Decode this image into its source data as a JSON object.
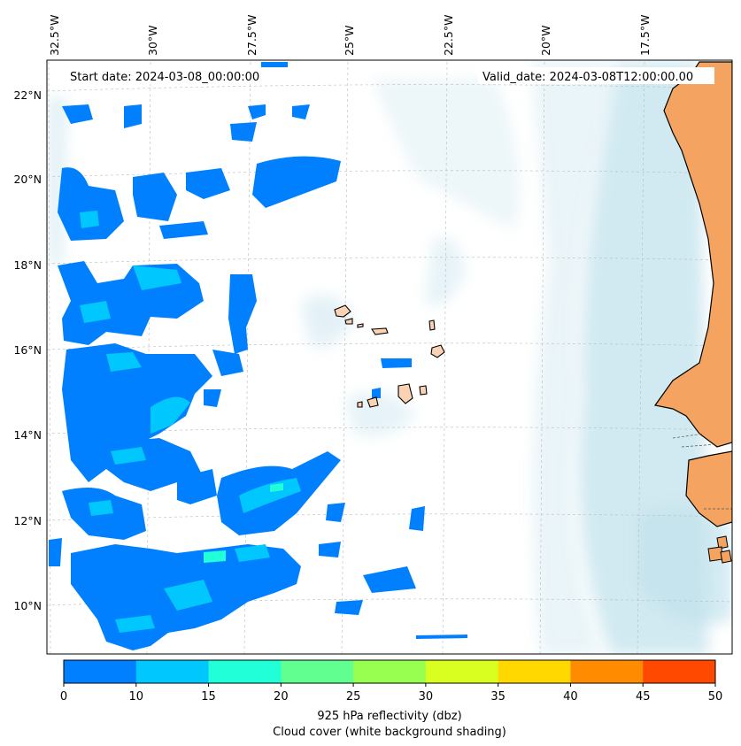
{
  "header": {
    "start_date": "Start date: 2024-03-08_00:00:00",
    "valid_date": "Valid_date: 2024-03-08T12:00:00.00"
  },
  "axes": {
    "longitude_labels": [
      "32.5°W",
      "30°W",
      "27.5°W",
      "25°W",
      "22.5°W",
      "20°W",
      "17.5°W"
    ],
    "latitude_labels": [
      "22°N",
      "20°N",
      "18°N",
      "16°N",
      "14°N",
      "12°N",
      "10°N"
    ]
  },
  "colorbar": {
    "ticks": [
      "0",
      "10",
      "15",
      "20",
      "25",
      "30",
      "35",
      "40",
      "45",
      "50"
    ],
    "colors": [
      "#0080ff",
      "#00c8ff",
      "#20ffd8",
      "#60ff90",
      "#98ff50",
      "#d8ff20",
      "#ffd800",
      "#ff8c00",
      "#ff4800"
    ],
    "label": "925 hPa reflectivity (dbz)",
    "sublabel": "Cloud cover (white background shading)"
  },
  "style": {
    "land_color": "#f4a460",
    "island_color": "#fcd2b4",
    "cloud_shade": "#add8e6",
    "reflectivity_low": "#0080ff",
    "reflectivity_mid": "#00c8ff",
    "reflectivity_high": "#20ffd8"
  }
}
